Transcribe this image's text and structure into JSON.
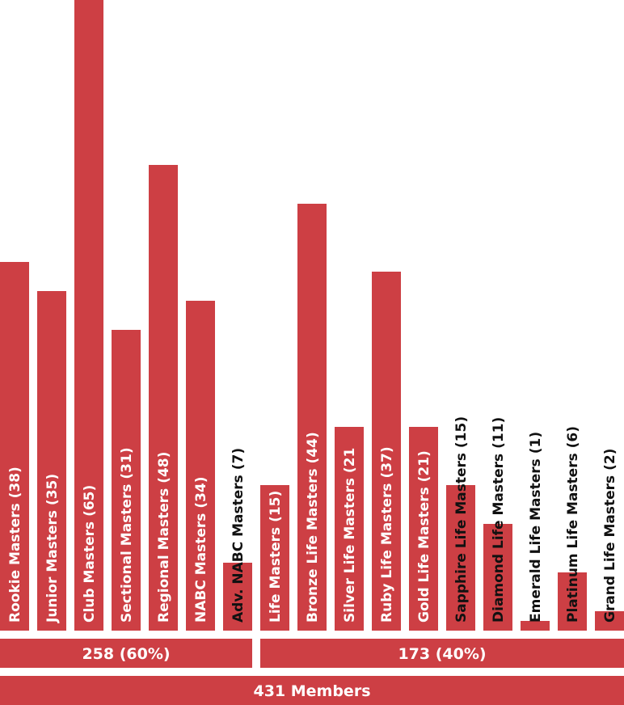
{
  "chart_data": {
    "type": "bar",
    "categories": [
      "Rookie Masters",
      "Junior Masters",
      "Club Masters",
      "Sectional Masters",
      "Regional Masters",
      "NABC Masters",
      "Adv. NABC Masters",
      "Life Masters",
      "Bronze Life Masters",
      "Silver Life Masters",
      "Ruby Life Masters",
      "Gold Life Masters",
      "Sapphire Life Masters",
      "Diamond Life Masters",
      "Emerald Life Masters",
      "Platinum Life Masters",
      "Grand Life Masters"
    ],
    "values": [
      38,
      35,
      65,
      31,
      48,
      34,
      7,
      15,
      44,
      21,
      37,
      21,
      15,
      11,
      1,
      6,
      2
    ],
    "labels": [
      "Rookie Masters (38)",
      "Junior Masters (35)",
      "Club Masters (65)",
      "Sectional Masters (31)",
      "Regional Masters (48)",
      "NABC Masters (34)",
      "Adv. NABC Masters (7)",
      "Life Masters (15)",
      "Bronze Life Masters (44)",
      "Silver Life Masters (21",
      "Ruby Life Masters (37)",
      "Gold Life Masters (21)",
      "Sapphire Life Masters (15)",
      "Diamond Life Masters (11)",
      "Emerald Life Masters (1)",
      "Platinum Life Masters (6)",
      "Grand Life Masters (2)"
    ],
    "groups": [
      {
        "label": "258 (60%)",
        "count": 258,
        "percent": 60,
        "first_bar": 0,
        "last_bar": 6
      },
      {
        "label": "173 (40%)",
        "count": 173,
        "percent": 40,
        "first_bar": 7,
        "last_bar": 16
      }
    ],
    "total_label": "431 Members",
    "total": 431,
    "ylim": [
      0,
      65
    ],
    "grid": false,
    "bar_color": "#cd3f44"
  }
}
